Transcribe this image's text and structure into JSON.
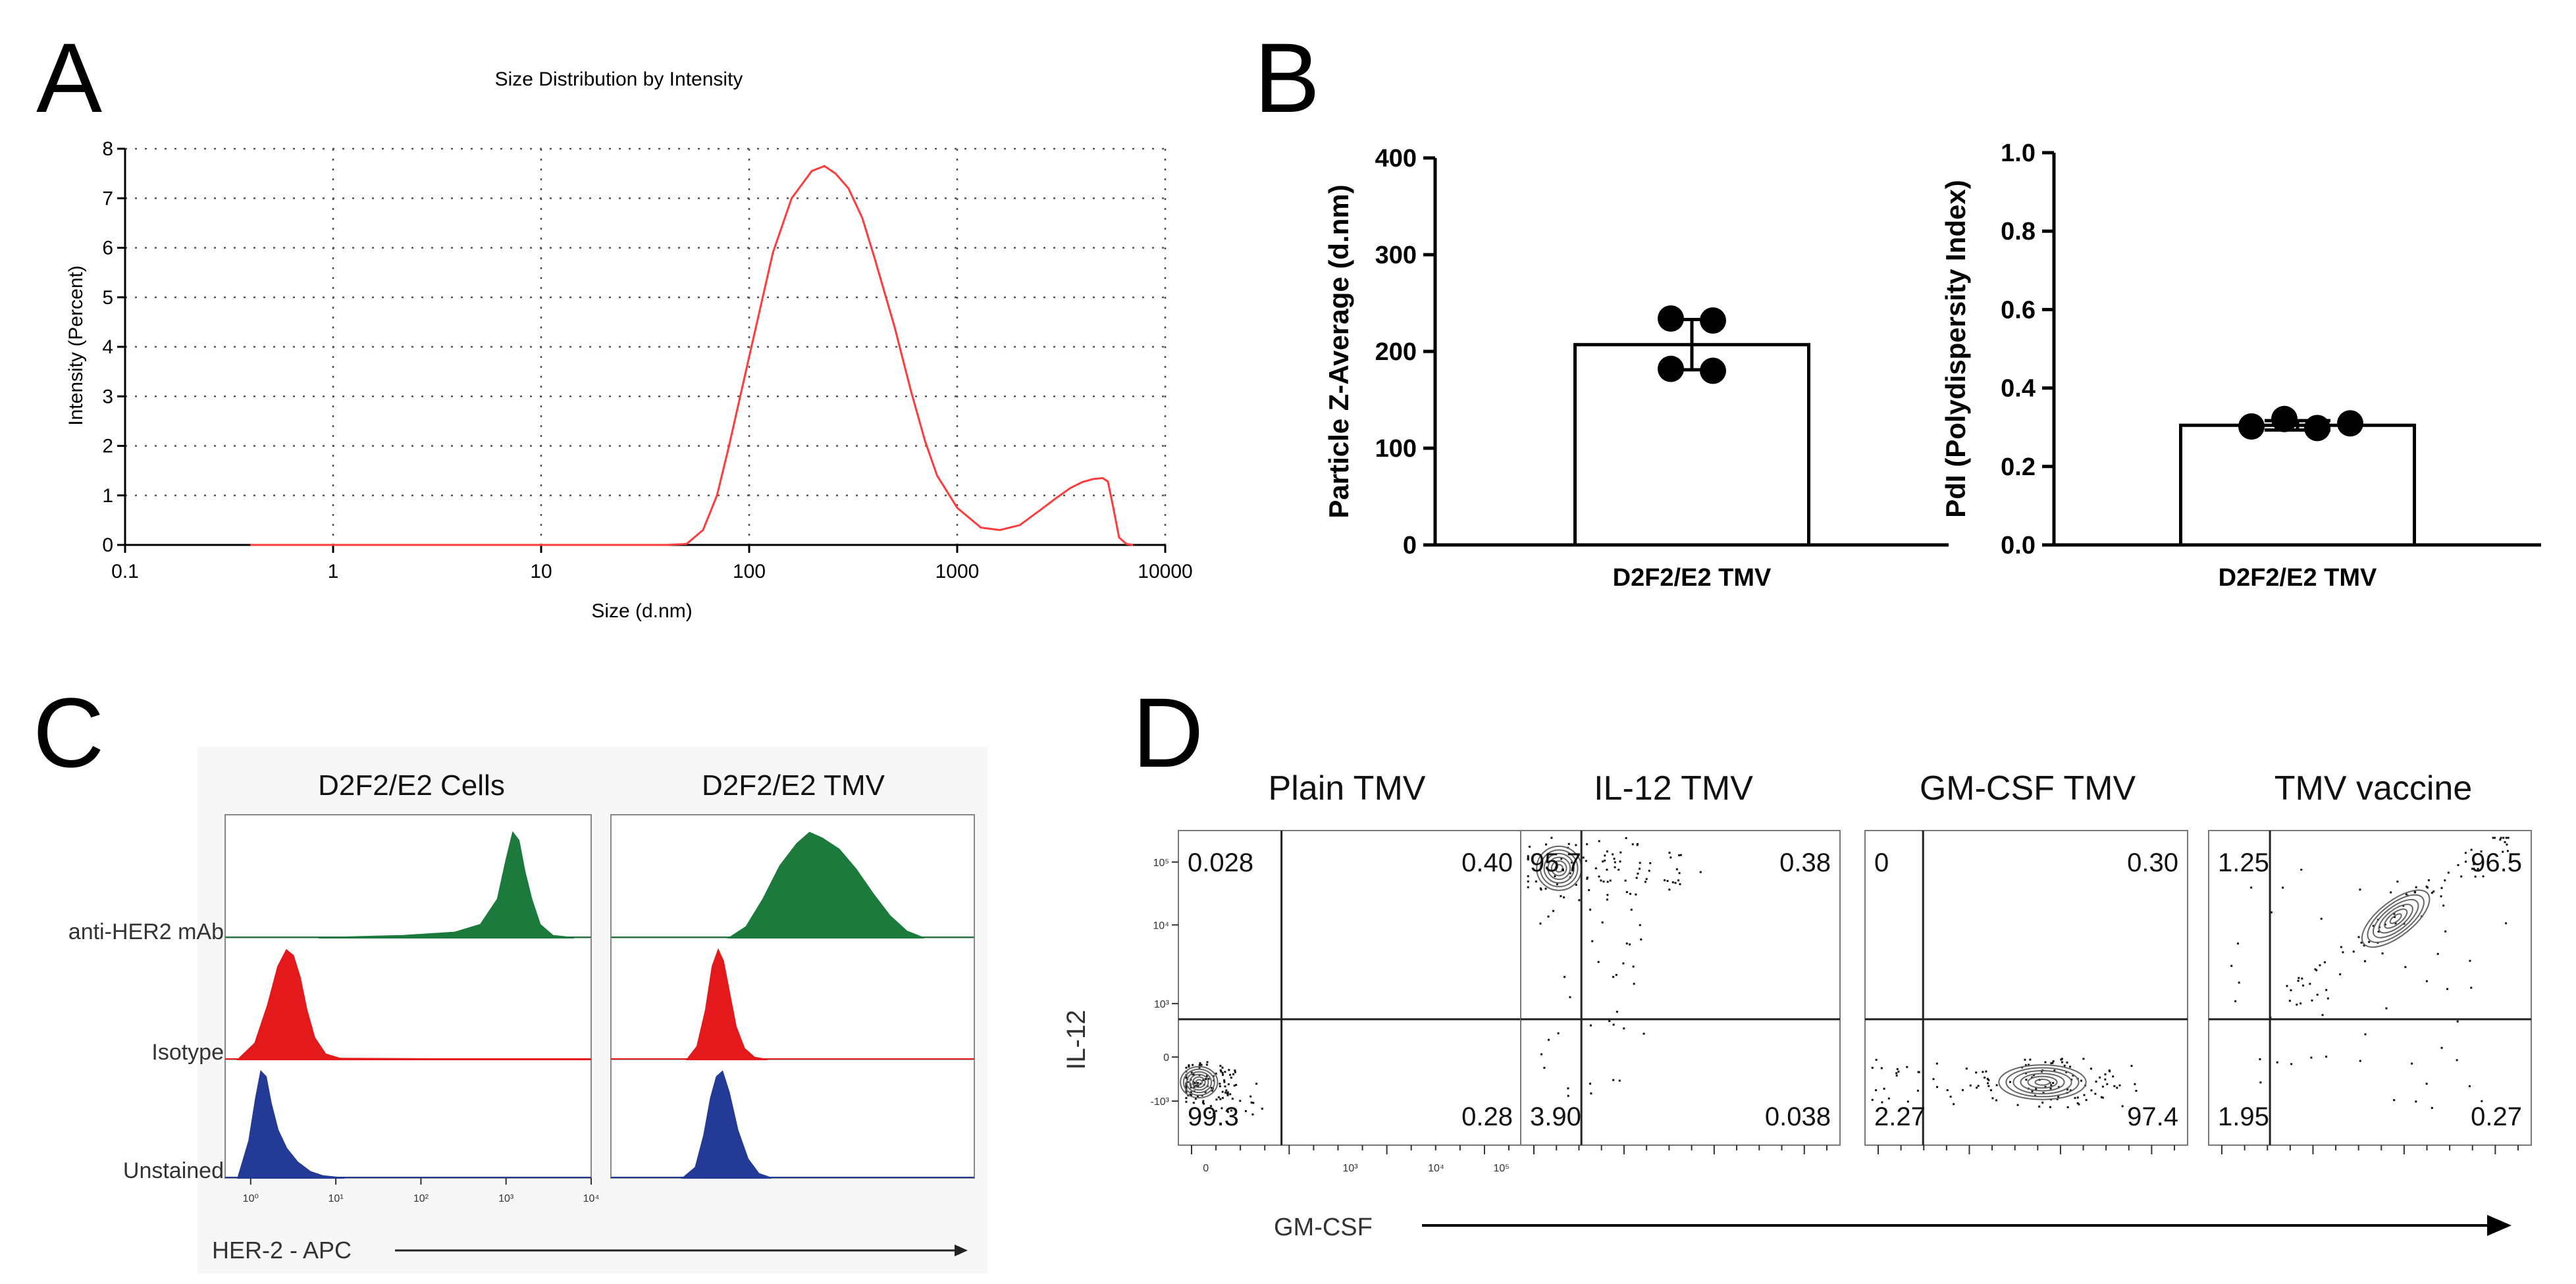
{
  "panels": {
    "a": {
      "letter": "A",
      "chart_data": {
        "type": "line",
        "title": "Size Distribution by Intensity",
        "xlabel": "Size (d.nm)",
        "ylabel": "Intensity (Percent)",
        "xscale": "log",
        "xlim": [
          0.1,
          10000
        ],
        "ylim": [
          0,
          8
        ],
        "x_ticks": [
          "0.1",
          "1",
          "10",
          "100",
          "1000",
          "10000"
        ],
        "y_ticks": [
          "0",
          "1",
          "2",
          "3",
          "4",
          "5",
          "6",
          "7",
          "8"
        ],
        "grid": true,
        "series_color": "#ff3b3b",
        "x": [
          0.4,
          1,
          10,
          40,
          50,
          60,
          70,
          80,
          100,
          130,
          160,
          200,
          230,
          260,
          300,
          350,
          400,
          500,
          600,
          700,
          800,
          1000,
          1300,
          1600,
          2000,
          2500,
          3000,
          3500,
          4000,
          4500,
          5000,
          5300,
          5600,
          6000,
          6500,
          7000
        ],
        "y": [
          0,
          0,
          0,
          0,
          0.02,
          0.3,
          1.0,
          2.0,
          3.8,
          5.9,
          7.0,
          7.55,
          7.65,
          7.5,
          7.2,
          6.6,
          5.8,
          4.4,
          3.1,
          2.1,
          1.4,
          0.75,
          0.35,
          0.3,
          0.4,
          0.7,
          0.95,
          1.15,
          1.27,
          1.33,
          1.35,
          1.28,
          0.8,
          0.15,
          0.02,
          0
        ]
      }
    },
    "b": {
      "letter": "B",
      "chart_data": [
        {
          "type": "bar",
          "categories": [
            "D2F2/E2 TMV"
          ],
          "values": [
            207
          ],
          "error": [
            26
          ],
          "points": [
            234,
            232,
            182,
            180
          ],
          "ylabel": "Particle Z-Average (d.nm)",
          "ylim": [
            0,
            400
          ],
          "y_ticks": [
            "0",
            "100",
            "200",
            "300",
            "400"
          ],
          "y_tick_values": [
            0,
            100,
            200,
            300,
            400
          ]
        },
        {
          "type": "bar",
          "categories": [
            "D2F2/E2 TMV"
          ],
          "values": [
            0.305
          ],
          "error": [
            0.012
          ],
          "points": [
            0.302,
            0.321,
            0.298,
            0.31
          ],
          "ylabel": "PdI (Polydispersity Index)",
          "ylim": [
            0,
            1.0
          ],
          "y_ticks": [
            "0.0",
            "0.2",
            "0.4",
            "0.6",
            "0.8",
            "1.0"
          ],
          "y_tick_values": [
            0,
            0.2,
            0.4,
            0.6,
            0.8,
            1.0
          ]
        }
      ]
    },
    "c": {
      "letter": "C",
      "columns": [
        "D2F2/E2 Cells",
        "D2F2/E2 TMV"
      ],
      "rows": [
        "anti-HER2 mAb",
        "Isotype",
        "Unstained"
      ],
      "xlabel": "HER-2 - APC",
      "x_ticks": [
        "10⁰",
        "10¹",
        "10²",
        "10³",
        "10⁴"
      ],
      "colors": {
        "anti": "#1b7a3c",
        "isotype": "#e3191c",
        "unstained": "#233a97"
      },
      "chart_data": {
        "type": "histogram",
        "xscale": "log",
        "xlim_log10": [
          -0.3,
          4
        ],
        "series": [
          {
            "column": "D2F2/E2 Cells",
            "row": "anti-HER2 mAb",
            "x_log10": [
              0.8,
              1.8,
              2.4,
              2.7,
              2.9,
              3.0,
              3.08,
              3.15,
              3.22,
              3.3,
              3.4,
              3.55,
              3.8
            ],
            "y": [
              0,
              0.02,
              0.05,
              0.12,
              0.35,
              0.7,
              0.95,
              0.88,
              0.6,
              0.35,
              0.12,
              0.02,
              0
            ]
          },
          {
            "column": "D2F2/E2 Cells",
            "row": "Isotype",
            "x_log10": [
              -0.15,
              0.05,
              0.2,
              0.32,
              0.42,
              0.5,
              0.58,
              0.66,
              0.75,
              0.88,
              1.05,
              4.0
            ],
            "y": [
              0,
              0.15,
              0.5,
              0.85,
              1.0,
              0.95,
              0.75,
              0.45,
              0.2,
              0.05,
              0.01,
              0
            ]
          },
          {
            "column": "D2F2/E2 Cells",
            "row": "Unstained",
            "x_log10": [
              -0.15,
              -0.02,
              0.06,
              0.12,
              0.18,
              0.24,
              0.32,
              0.42,
              0.55,
              0.7,
              0.85,
              1.1
            ],
            "y": [
              0,
              0.35,
              0.75,
              1.0,
              0.95,
              0.7,
              0.45,
              0.28,
              0.15,
              0.06,
              0.02,
              0
            ]
          },
          {
            "column": "D2F2/E2 TMV",
            "row": "anti-HER2 mAb",
            "x_log10": [
              1.1,
              1.3,
              1.5,
              1.7,
              1.9,
              2.05,
              2.2,
              2.4,
              2.6,
              2.8,
              3.0,
              3.2,
              3.4
            ],
            "y": [
              0,
              0.1,
              0.35,
              0.65,
              0.85,
              0.95,
              0.9,
              0.8,
              0.62,
              0.4,
              0.2,
              0.06,
              0
            ]
          },
          {
            "column": "D2F2/E2 TMV",
            "row": "Isotype",
            "x_log10": [
              0.6,
              0.72,
              0.82,
              0.9,
              0.97,
              1.03,
              1.1,
              1.18,
              1.28,
              1.4,
              1.55
            ],
            "y": [
              0,
              0.12,
              0.45,
              0.85,
              1.0,
              0.9,
              0.62,
              0.3,
              0.1,
              0.02,
              0
            ]
          },
          {
            "column": "D2F2/E2 TMV",
            "row": "Unstained",
            "x_log10": [
              0.55,
              0.7,
              0.8,
              0.88,
              0.95,
              1.02,
              1.1,
              1.2,
              1.32,
              1.45,
              1.6
            ],
            "y": [
              0,
              0.1,
              0.4,
              0.75,
              0.95,
              1.0,
              0.8,
              0.45,
              0.18,
              0.04,
              0
            ]
          }
        ]
      }
    },
    "d": {
      "letter": "D",
      "xlabel": "GM-CSF",
      "ylabel": "IL-12",
      "y_ticks": [
        "10⁵",
        "10⁴",
        "10³",
        "0",
        "-10³"
      ],
      "x_ticks": [
        "0",
        "10³",
        "10⁴",
        "10⁵"
      ],
      "chart_data": {
        "type": "flow-quadrant",
        "plots": [
          {
            "title": "Plain TMV",
            "quadrants": {
              "ul": "0.028",
              "ur": "0.40",
              "ll": "99.3",
              "lr": "0.28"
            }
          },
          {
            "title": "IL-12 TMV",
            "quadrants": {
              "ul": "95.7",
              "ur": "0.38",
              "ll": "3.90",
              "lr": "0.038"
            }
          },
          {
            "title": "GM-CSF TMV",
            "quadrants": {
              "ul": "0",
              "ur": "0.30",
              "ll": "2.27",
              "lr": "97.4"
            }
          },
          {
            "title": "TMV vaccine",
            "quadrants": {
              "ul": "1.25",
              "ur": "96.5",
              "ll": "1.95",
              "lr": "0.27"
            }
          }
        ]
      }
    }
  }
}
